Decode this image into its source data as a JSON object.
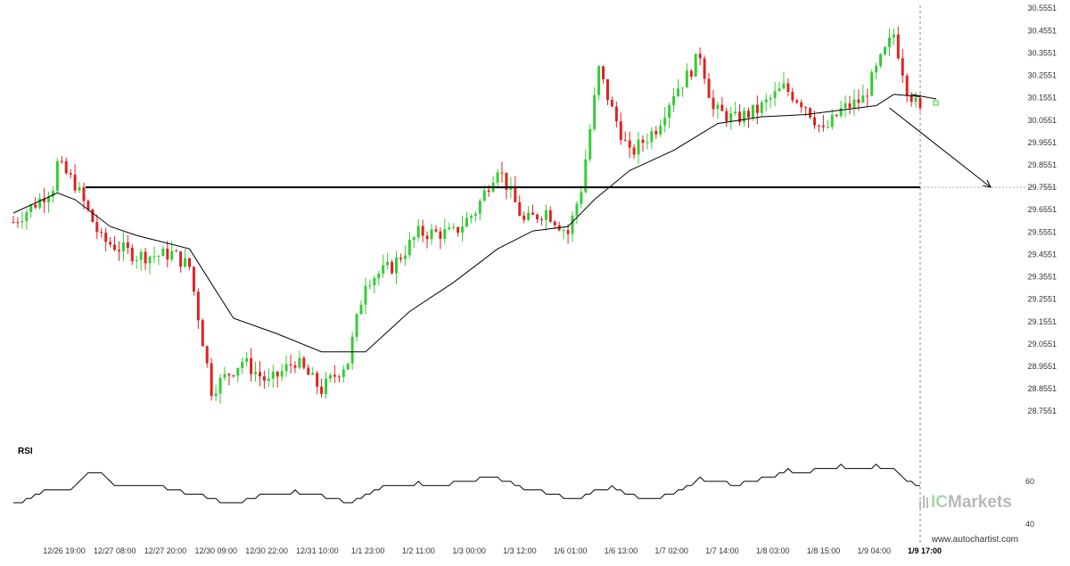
{
  "chart_data": [
    {
      "type": "candlestick",
      "title": "",
      "x_ticks": [
        "12/26 19:00",
        "12/27 08:00",
        "12/27 20:00",
        "12/30 09:00",
        "12/30 22:00",
        "12/31 10:00",
        "1/1 23:00",
        "1/2 11:00",
        "1/3 00:00",
        "1/3 12:00",
        "1/6 01:00",
        "1/6 13:00",
        "1/7 02:00",
        "1/7 14:00",
        "1/8 03:00",
        "1/8 15:00",
        "1/9 04:00",
        "1/9 17:00"
      ],
      "y_ticks": [
        "30.5551",
        "30.4551",
        "30.3551",
        "30.2551",
        "30.1551",
        "30.0551",
        "29.9551",
        "29.8551",
        "29.7551",
        "29.6551",
        "29.5551",
        "29.4551",
        "29.3551",
        "29.2551",
        "29.1551",
        "29.0551",
        "28.9551",
        "28.8551",
        "28.7551"
      ],
      "ylim": [
        28.72,
        30.56
      ],
      "level_line": 29.7551,
      "current_time_label": "1/9 17:00",
      "anchor_points": [
        [
          0,
          29.6
        ],
        [
          6,
          29.7
        ],
        [
          9,
          29.76
        ],
        [
          10,
          29.86
        ],
        [
          14,
          29.77
        ],
        [
          20,
          29.52
        ],
        [
          28,
          29.45
        ],
        [
          33,
          29.45
        ],
        [
          36,
          29.46
        ],
        [
          40,
          29.4
        ],
        [
          45,
          28.85
        ],
        [
          52,
          28.98
        ],
        [
          58,
          28.88
        ],
        [
          64,
          28.98
        ],
        [
          70,
          28.85
        ],
        [
          76,
          28.98
        ],
        [
          80,
          29.34
        ],
        [
          86,
          29.4
        ],
        [
          92,
          29.55
        ],
        [
          100,
          29.55
        ],
        [
          105,
          29.65
        ],
        [
          110,
          29.85
        ],
        [
          116,
          29.6
        ],
        [
          121,
          29.65
        ],
        [
          126,
          29.55
        ],
        [
          129,
          29.75
        ],
        [
          133,
          30.28
        ],
        [
          136,
          30.1
        ],
        [
          140,
          29.9
        ],
        [
          146,
          30.02
        ],
        [
          150,
          30.18
        ],
        [
          153,
          30.25
        ],
        [
          156,
          30.35
        ],
        [
          159,
          30.1
        ],
        [
          164,
          30.06
        ],
        [
          169,
          30.1
        ],
        [
          172,
          30.15
        ],
        [
          175,
          30.2
        ],
        [
          180,
          30.12
        ],
        [
          184,
          30.0
        ],
        [
          188,
          30.1
        ],
        [
          193,
          30.15
        ],
        [
          197,
          30.32
        ],
        [
          200,
          30.44
        ],
        [
          203,
          30.2
        ],
        [
          206,
          30.09
        ]
      ],
      "sma": [
        [
          0,
          29.64
        ],
        [
          10,
          29.73
        ],
        [
          14,
          29.7
        ],
        [
          22,
          29.58
        ],
        [
          28,
          29.54
        ],
        [
          40,
          29.48
        ],
        [
          50,
          29.17
        ],
        [
          60,
          29.1
        ],
        [
          70,
          29.02
        ],
        [
          80,
          29.02
        ],
        [
          90,
          29.2
        ],
        [
          100,
          29.33
        ],
        [
          110,
          29.48
        ],
        [
          118,
          29.56
        ],
        [
          126,
          29.58
        ],
        [
          132,
          29.7
        ],
        [
          140,
          29.83
        ],
        [
          150,
          29.92
        ],
        [
          160,
          30.04
        ],
        [
          170,
          30.07
        ],
        [
          180,
          30.08
        ],
        [
          188,
          30.1
        ],
        [
          196,
          30.12
        ],
        [
          200,
          30.17
        ],
        [
          206,
          30.16
        ]
      ],
      "forecast_arrow": {
        "from": [
          199,
          30.11
        ],
        "to": [
          222,
          29.7551
        ]
      },
      "indicator": {
        "name": "RSI",
        "y_ticks": [
          "60",
          "40"
        ],
        "ylim": [
          35,
          80
        ],
        "values": [
          [
            0,
            49
          ],
          [
            4,
            52
          ],
          [
            8,
            56
          ],
          [
            12,
            55
          ],
          [
            16,
            62
          ],
          [
            18,
            64
          ],
          [
            20,
            63
          ],
          [
            24,
            57
          ],
          [
            28,
            57
          ],
          [
            34,
            57
          ],
          [
            38,
            55
          ],
          [
            42,
            54
          ],
          [
            46,
            51
          ],
          [
            50,
            49
          ],
          [
            56,
            53
          ],
          [
            60,
            54
          ],
          [
            64,
            55
          ],
          [
            68,
            54
          ],
          [
            72,
            52
          ],
          [
            76,
            50
          ],
          [
            80,
            53
          ],
          [
            84,
            57
          ],
          [
            88,
            57
          ],
          [
            92,
            59
          ],
          [
            96,
            58
          ],
          [
            100,
            59
          ],
          [
            104,
            60
          ],
          [
            108,
            62
          ],
          [
            112,
            60
          ],
          [
            116,
            56
          ],
          [
            120,
            55
          ],
          [
            124,
            53
          ],
          [
            128,
            52
          ],
          [
            132,
            55
          ],
          [
            136,
            57
          ],
          [
            140,
            54
          ],
          [
            144,
            51
          ],
          [
            148,
            53
          ],
          [
            152,
            56
          ],
          [
            156,
            61
          ],
          [
            160,
            60
          ],
          [
            164,
            58
          ],
          [
            168,
            60
          ],
          [
            172,
            62
          ],
          [
            176,
            65
          ],
          [
            180,
            64
          ],
          [
            184,
            66
          ],
          [
            188,
            67
          ],
          [
            192,
            65
          ],
          [
            196,
            67
          ],
          [
            200,
            65
          ],
          [
            203,
            60
          ],
          [
            206,
            57
          ]
        ]
      }
    }
  ],
  "watermark": {
    "brand": "ICMarkets",
    "brand_prefix": "IC",
    "brand_suffix": "Markets"
  },
  "footer": {
    "site": "www.autochartist.com"
  },
  "colors": {
    "bull": "#33cc33",
    "bear": "#e02020",
    "line": "#000000",
    "grid": "#c8c8c8",
    "watermark": "#b8b8b8"
  }
}
